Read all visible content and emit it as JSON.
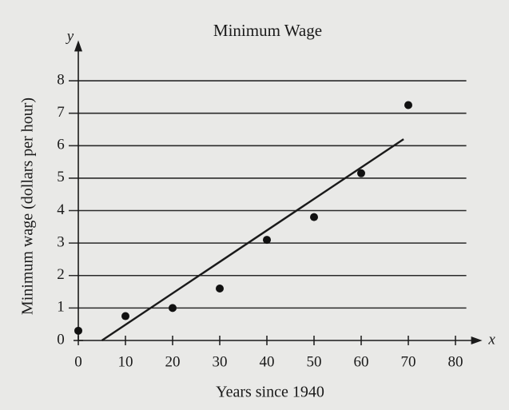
{
  "chart_data": {
    "type": "scatter",
    "title": "Minimum Wage",
    "x_label": "Years since 1940",
    "y_label": "Minimum wage (dollars per hour)",
    "x_symbol": "x",
    "y_symbol": "y",
    "x": [
      0,
      10,
      20,
      30,
      40,
      50,
      60,
      70
    ],
    "values": [
      0.3,
      0.75,
      1.0,
      1.6,
      3.1,
      3.8,
      5.15,
      7.25
    ],
    "color": "#111111",
    "trend_line": {
      "x": [
        5,
        69
      ],
      "y": [
        0,
        6.2
      ]
    },
    "xlim": [
      0,
      84
    ],
    "ylim": [
      0,
      9
    ],
    "xticks": [
      0,
      10,
      20,
      30,
      40,
      50,
      60,
      70,
      80
    ],
    "yticks": [
      0,
      1,
      2,
      3,
      4,
      5,
      6,
      7,
      8
    ],
    "grid": true
  }
}
